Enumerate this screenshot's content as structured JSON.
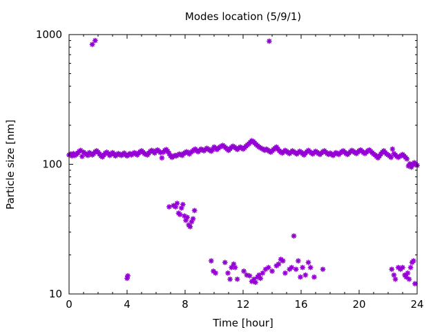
{
  "chart_data": {
    "type": "scatter",
    "title": "Modes location (5/9/1)",
    "xlabel": "Time [hour]",
    "ylabel": "Particle size [nm]",
    "xlim": [
      0,
      24
    ],
    "ylim": [
      10,
      1000
    ],
    "yscale": "log",
    "xticks": [
      "0",
      "4",
      "8",
      "12",
      "16",
      "20",
      "24"
    ],
    "yticks": [
      "10",
      "100",
      "1000"
    ],
    "grid": false,
    "legend": "none",
    "marker_color": "#9400d3",
    "series": [
      {
        "points": [
          [
            0.0,
            118
          ],
          [
            0.1,
            120
          ],
          [
            0.2,
            116
          ],
          [
            0.3,
            121
          ],
          [
            0.4,
            117
          ],
          [
            0.5,
            119
          ],
          [
            0.6,
            122
          ],
          [
            0.7,
            126
          ],
          [
            0.8,
            128
          ],
          [
            0.9,
            115
          ],
          [
            1.0,
            124
          ],
          [
            1.1,
            121
          ],
          [
            1.2,
            119
          ],
          [
            1.3,
            117
          ],
          [
            1.4,
            123
          ],
          [
            1.5,
            120
          ],
          [
            1.6,
            118
          ],
          [
            1.7,
            121
          ],
          [
            1.8,
            125
          ],
          [
            1.9,
            127
          ],
          [
            2.0,
            124
          ],
          [
            2.1,
            120
          ],
          [
            2.2,
            116
          ],
          [
            2.3,
            114
          ],
          [
            2.4,
            118
          ],
          [
            2.5,
            122
          ],
          [
            2.6,
            124
          ],
          [
            2.7,
            121
          ],
          [
            2.8,
            117
          ],
          [
            2.9,
            119
          ],
          [
            3.0,
            123
          ],
          [
            3.1,
            120
          ],
          [
            3.2,
            116
          ],
          [
            3.3,
            118
          ],
          [
            3.4,
            121
          ],
          [
            3.5,
            119
          ],
          [
            3.6,
            117
          ],
          [
            3.7,
            120
          ],
          [
            3.8,
            122
          ],
          [
            3.9,
            118
          ],
          [
            4.0,
            116
          ],
          [
            4.1,
            119
          ],
          [
            4.2,
            121
          ],
          [
            4.3,
            118
          ],
          [
            4.4,
            120
          ],
          [
            4.5,
            123
          ],
          [
            4.6,
            121
          ],
          [
            4.7,
            118
          ],
          [
            4.8,
            122
          ],
          [
            4.9,
            125
          ],
          [
            5.0,
            127
          ],
          [
            5.1,
            124
          ],
          [
            5.2,
            121
          ],
          [
            5.3,
            119
          ],
          [
            5.4,
            118
          ],
          [
            5.5,
            122
          ],
          [
            5.6,
            126
          ],
          [
            5.7,
            128
          ],
          [
            5.8,
            125
          ],
          [
            5.9,
            122
          ],
          [
            6.0,
            127
          ],
          [
            6.1,
            129
          ],
          [
            6.2,
            126
          ],
          [
            6.3,
            123
          ],
          [
            6.4,
            112
          ],
          [
            6.5,
            124
          ],
          [
            6.6,
            128
          ],
          [
            6.7,
            130
          ],
          [
            6.8,
            126
          ],
          [
            6.9,
            121
          ],
          [
            7.0,
            116
          ],
          [
            7.1,
            113
          ],
          [
            7.2,
            115
          ],
          [
            7.3,
            117
          ],
          [
            7.4,
            116
          ],
          [
            7.5,
            118
          ],
          [
            7.6,
            120
          ],
          [
            7.7,
            119
          ],
          [
            7.8,
            117
          ],
          [
            7.9,
            121
          ],
          [
            8.0,
            123
          ],
          [
            8.1,
            125
          ],
          [
            8.2,
            122
          ],
          [
            8.3,
            120
          ],
          [
            8.4,
            124
          ],
          [
            8.5,
            126
          ],
          [
            8.6,
            129
          ],
          [
            8.7,
            131
          ],
          [
            8.8,
            127
          ],
          [
            8.9,
            125
          ],
          [
            9.0,
            128
          ],
          [
            9.1,
            131
          ],
          [
            9.2,
            129
          ],
          [
            9.3,
            127
          ],
          [
            9.4,
            130
          ],
          [
            9.5,
            133
          ],
          [
            9.6,
            131
          ],
          [
            9.7,
            128
          ],
          [
            9.8,
            126
          ],
          [
            9.9,
            130
          ],
          [
            10.0,
            136
          ],
          [
            10.1,
            133
          ],
          [
            10.2,
            130
          ],
          [
            10.3,
            133
          ],
          [
            10.4,
            136
          ],
          [
            10.5,
            138
          ],
          [
            10.6,
            140
          ],
          [
            10.7,
            137
          ],
          [
            10.8,
            134
          ],
          [
            10.9,
            131
          ],
          [
            11.0,
            128
          ],
          [
            11.1,
            132
          ],
          [
            11.2,
            135
          ],
          [
            11.3,
            138
          ],
          [
            11.4,
            136
          ],
          [
            11.5,
            133
          ],
          [
            11.6,
            130
          ],
          [
            11.7,
            133
          ],
          [
            11.8,
            136
          ],
          [
            11.9,
            134
          ],
          [
            12.0,
            131
          ],
          [
            12.1,
            134
          ],
          [
            12.2,
            138
          ],
          [
            12.3,
            141
          ],
          [
            12.4,
            144
          ],
          [
            12.5,
            148
          ],
          [
            12.6,
            152
          ],
          [
            12.7,
            150
          ],
          [
            12.8,
            146
          ],
          [
            12.9,
            142
          ],
          [
            13.0,
            139
          ],
          [
            13.1,
            136
          ],
          [
            13.2,
            134
          ],
          [
            13.3,
            132
          ],
          [
            13.4,
            130
          ],
          [
            13.5,
            128
          ],
          [
            13.6,
            131
          ],
          [
            13.7,
            129
          ],
          [
            13.8,
            126
          ],
          [
            13.9,
            124
          ],
          [
            14.0,
            127
          ],
          [
            14.1,
            130
          ],
          [
            14.2,
            133
          ],
          [
            14.3,
            136
          ],
          [
            14.4,
            131
          ],
          [
            14.5,
            127
          ],
          [
            14.6,
            124
          ],
          [
            14.7,
            122
          ],
          [
            14.8,
            125
          ],
          [
            14.9,
            128
          ],
          [
            15.0,
            126
          ],
          [
            15.1,
            123
          ],
          [
            15.2,
            121
          ],
          [
            15.3,
            124
          ],
          [
            15.4,
            127
          ],
          [
            15.5,
            125
          ],
          [
            15.6,
            122
          ],
          [
            15.7,
            120
          ],
          [
            15.8,
            123
          ],
          [
            15.9,
            126
          ],
          [
            16.0,
            124
          ],
          [
            16.1,
            121
          ],
          [
            16.2,
            118
          ],
          [
            16.3,
            122
          ],
          [
            16.4,
            125
          ],
          [
            16.5,
            128
          ],
          [
            16.6,
            125
          ],
          [
            16.7,
            122
          ],
          [
            16.8,
            120
          ],
          [
            16.9,
            123
          ],
          [
            17.0,
            126
          ],
          [
            17.1,
            124
          ],
          [
            17.2,
            121
          ],
          [
            17.3,
            119
          ],
          [
            17.4,
            122
          ],
          [
            17.5,
            125
          ],
          [
            17.6,
            127
          ],
          [
            17.7,
            124
          ],
          [
            17.8,
            121
          ],
          [
            17.9,
            119
          ],
          [
            18.0,
            122
          ],
          [
            18.1,
            120
          ],
          [
            18.2,
            117
          ],
          [
            18.3,
            120
          ],
          [
            18.4,
            123
          ],
          [
            18.5,
            121
          ],
          [
            18.6,
            119
          ],
          [
            18.7,
            122
          ],
          [
            18.8,
            125
          ],
          [
            18.9,
            127
          ],
          [
            19.0,
            124
          ],
          [
            19.1,
            121
          ],
          [
            19.2,
            119
          ],
          [
            19.3,
            122
          ],
          [
            19.4,
            125
          ],
          [
            19.5,
            128
          ],
          [
            19.6,
            126
          ],
          [
            19.7,
            123
          ],
          [
            19.8,
            121
          ],
          [
            19.9,
            124
          ],
          [
            20.0,
            127
          ],
          [
            20.1,
            129
          ],
          [
            20.2,
            126
          ],
          [
            20.3,
            123
          ],
          [
            20.4,
            121
          ],
          [
            20.5,
            124
          ],
          [
            20.6,
            127
          ],
          [
            20.7,
            129
          ],
          [
            20.8,
            126
          ],
          [
            20.9,
            123
          ],
          [
            21.0,
            120
          ],
          [
            21.1,
            118
          ],
          [
            21.2,
            115
          ],
          [
            21.3,
            112
          ],
          [
            21.4,
            116
          ],
          [
            21.5,
            120
          ],
          [
            21.6,
            124
          ],
          [
            21.7,
            127
          ],
          [
            21.8,
            123
          ],
          [
            21.9,
            120
          ],
          [
            22.0,
            118
          ],
          [
            22.1,
            116
          ],
          [
            22.2,
            113
          ],
          [
            22.3,
            131
          ],
          [
            22.4,
            121
          ],
          [
            22.5,
            118
          ],
          [
            22.6,
            115
          ],
          [
            22.7,
            113
          ],
          [
            22.8,
            115
          ],
          [
            22.9,
            117
          ],
          [
            23.0,
            119
          ],
          [
            23.1,
            116
          ],
          [
            23.2,
            113
          ],
          [
            23.3,
            110
          ],
          [
            23.4,
            97
          ],
          [
            23.5,
            101
          ],
          [
            23.6,
            95
          ],
          [
            23.7,
            99
          ],
          [
            23.8,
            103
          ],
          [
            23.9,
            100
          ],
          [
            24.0,
            98
          ],
          [
            1.6,
            840
          ],
          [
            1.8,
            900
          ],
          [
            13.8,
            890
          ],
          [
            4.0,
            13.2
          ],
          [
            4.05,
            13.8
          ],
          [
            6.9,
            47
          ],
          [
            7.2,
            48
          ],
          [
            7.35,
            47
          ],
          [
            7.45,
            50
          ],
          [
            7.55,
            42
          ],
          [
            7.65,
            41
          ],
          [
            7.75,
            46
          ],
          [
            7.85,
            49
          ],
          [
            7.95,
            40
          ],
          [
            8.05,
            37
          ],
          [
            8.15,
            39
          ],
          [
            8.25,
            34
          ],
          [
            8.35,
            33
          ],
          [
            8.45,
            36
          ],
          [
            8.55,
            38
          ],
          [
            8.65,
            44
          ],
          [
            9.8,
            18
          ],
          [
            9.95,
            15
          ],
          [
            10.1,
            14.5
          ],
          [
            10.75,
            17.5
          ],
          [
            10.95,
            14.5
          ],
          [
            11.1,
            13
          ],
          [
            11.2,
            16
          ],
          [
            11.35,
            17
          ],
          [
            11.45,
            16
          ],
          [
            11.6,
            13
          ],
          [
            12.05,
            15
          ],
          [
            12.25,
            14
          ],
          [
            12.45,
            13.8
          ],
          [
            12.6,
            12.5
          ],
          [
            12.75,
            13
          ],
          [
            12.85,
            12.3
          ],
          [
            13.0,
            13.5
          ],
          [
            13.1,
            14
          ],
          [
            13.2,
            13.2
          ],
          [
            13.35,
            14.5
          ],
          [
            13.55,
            15.5
          ],
          [
            13.75,
            16
          ],
          [
            14.0,
            15
          ],
          [
            14.3,
            16.5
          ],
          [
            14.45,
            17
          ],
          [
            14.6,
            18.5
          ],
          [
            14.75,
            18
          ],
          [
            14.9,
            14.5
          ],
          [
            15.2,
            15.5
          ],
          [
            15.35,
            16
          ],
          [
            15.5,
            28
          ],
          [
            15.65,
            15.5
          ],
          [
            15.8,
            18
          ],
          [
            15.95,
            13.5
          ],
          [
            16.1,
            16
          ],
          [
            16.3,
            14
          ],
          [
            16.5,
            17.5
          ],
          [
            16.65,
            16
          ],
          [
            16.9,
            13.5
          ],
          [
            17.5,
            15.5
          ],
          [
            22.25,
            15.5
          ],
          [
            22.4,
            14
          ],
          [
            22.5,
            13
          ],
          [
            22.7,
            16
          ],
          [
            22.85,
            15.5
          ],
          [
            23.0,
            16
          ],
          [
            23.15,
            14
          ],
          [
            23.25,
            13.5
          ],
          [
            23.35,
            14.5
          ],
          [
            23.45,
            13
          ],
          [
            23.55,
            16
          ],
          [
            23.65,
            17.5
          ],
          [
            23.75,
            18
          ],
          [
            23.85,
            12
          ]
        ]
      }
    ]
  }
}
